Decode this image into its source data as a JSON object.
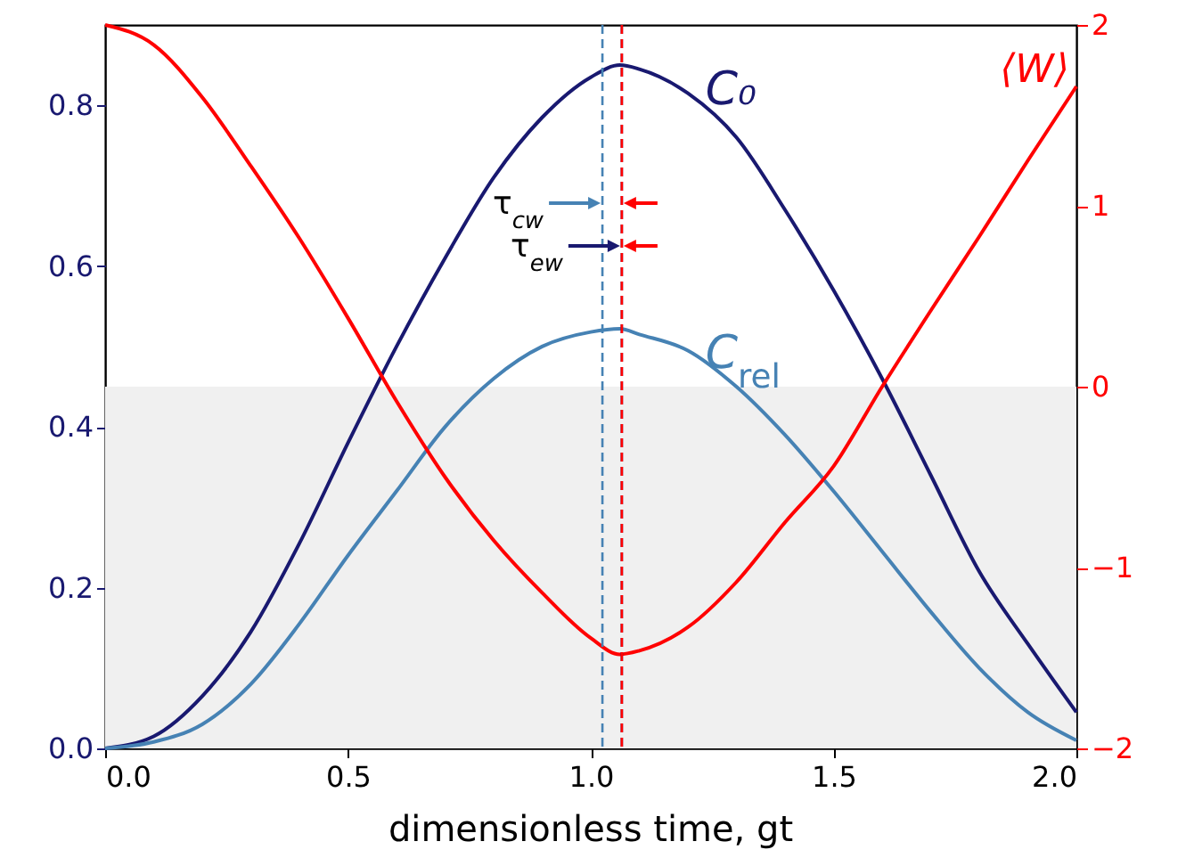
{
  "chart_data": {
    "type": "line",
    "xlabel": "dimensionless time, gt",
    "x": [
      0,
      0.1,
      0.2,
      0.3,
      0.4,
      0.5,
      0.6,
      0.7,
      0.8,
      0.9,
      1.0,
      1.06,
      1.1,
      1.2,
      1.3,
      1.4,
      1.5,
      1.6,
      1.7,
      1.8,
      1.9,
      2.0
    ],
    "series": [
      {
        "name": "C₀",
        "color": "#191970",
        "values": [
          0,
          0.015,
          0.065,
          0.145,
          0.255,
          0.38,
          0.5,
          0.61,
          0.71,
          0.785,
          0.835,
          0.85,
          0.845,
          0.815,
          0.76,
          0.67,
          0.57,
          0.46,
          0.34,
          0.22,
          0.13,
          0.045
        ]
      },
      {
        "name": "C$_{rel}$",
        "color": "#4682b4",
        "values": [
          0,
          0.008,
          0.03,
          0.08,
          0.155,
          0.24,
          0.32,
          0.4,
          0.46,
          0.5,
          0.518,
          0.522,
          0.515,
          0.495,
          0.45,
          0.39,
          0.32,
          0.245,
          0.17,
          0.1,
          0.045,
          0.01
        ]
      },
      {
        "name": "⟨W⟩",
        "color": "#ff0000",
        "axis": "y2",
        "values": [
          2,
          1.89,
          1.6,
          1.22,
          0.82,
          0.38,
          -0.08,
          -0.5,
          -0.85,
          -1.14,
          -1.39,
          -1.48,
          -1.46,
          -1.33,
          -1.08,
          -0.75,
          -0.44,
          0.0,
          0.42,
          0.83,
          1.25,
          1.66
        ]
      }
    ],
    "xlim": [
      0,
      2
    ],
    "xticks": [
      {
        "value": 0,
        "label": "0.0"
      },
      0.5,
      {
        "value": 1,
        "label": "1.0"
      },
      1.5,
      {
        "value": 2,
        "label": "2.0"
      }
    ],
    "ylim": [
      0,
      0.9
    ],
    "yticks": [
      {
        "value": 0,
        "label": "0.0"
      },
      0.2,
      0.4,
      0.6,
      0.8
    ],
    "y2lim": [
      -2,
      2
    ],
    "y2ticks": [
      {
        "value": -2,
        "label": "−2"
      },
      {
        "value": -1,
        "label": "−1"
      },
      0,
      1,
      2
    ],
    "bands": [
      {
        "axis": "y2",
        "from": -2,
        "to": 0,
        "color": "#f0f0f0"
      }
    ],
    "ref_lines": [
      {
        "axis": "x",
        "value": 1.024,
        "color": "#4682b4",
        "line_style": "dashed"
      },
      {
        "axis": "x",
        "value": 1.064,
        "color": "#191970",
        "line_style": "dashed"
      },
      {
        "axis": "x",
        "value": 1.064,
        "color": "#ff0000",
        "line_style": "dashed"
      }
    ],
    "annotations": [
      "τ$_{cw}$",
      "τ$_{ew}$"
    ],
    "line_style": "solid"
  }
}
